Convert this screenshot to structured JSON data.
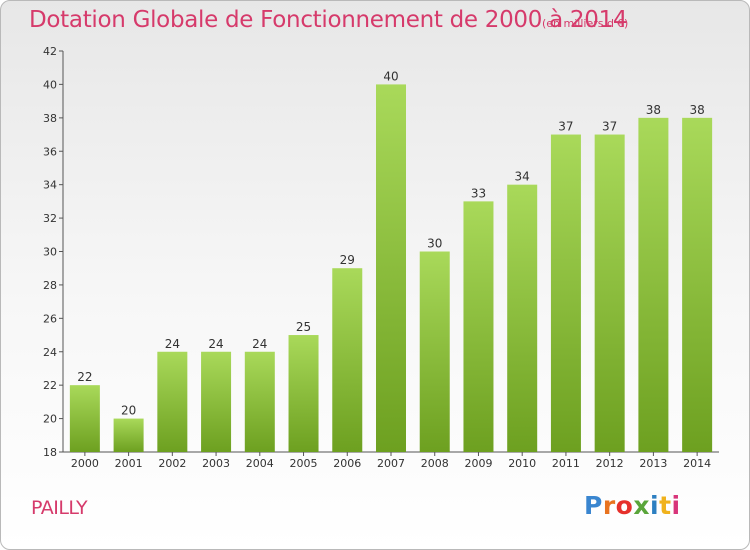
{
  "title": "Dotation Globale de Fonctionnement de 2000 à 2014",
  "subtitle": "(en milliers d'€)",
  "commune": "PAILLY",
  "brand": "Proxiti",
  "colors": {
    "title": "#d63a6b",
    "bar_light": "#a9d95a",
    "bar_dark": "#6da020"
  },
  "chart_data": {
    "type": "bar",
    "title": "Dotation Globale de Fonctionnement de 2000 à 2014",
    "xlabel": "",
    "ylabel": "",
    "categories": [
      "2000",
      "2001",
      "2002",
      "2003",
      "2004",
      "2005",
      "2006",
      "2007",
      "2008",
      "2009",
      "2010",
      "2011",
      "2012",
      "2013",
      "2014"
    ],
    "values": [
      22,
      20,
      24,
      24,
      24,
      25,
      29,
      40,
      30,
      33,
      34,
      37,
      37,
      38,
      38
    ],
    "ylim": [
      18,
      42
    ],
    "yticks": [
      18,
      20,
      22,
      24,
      26,
      28,
      30,
      32,
      34,
      36,
      38,
      40,
      42
    ],
    "grid": false,
    "legend": "none"
  }
}
